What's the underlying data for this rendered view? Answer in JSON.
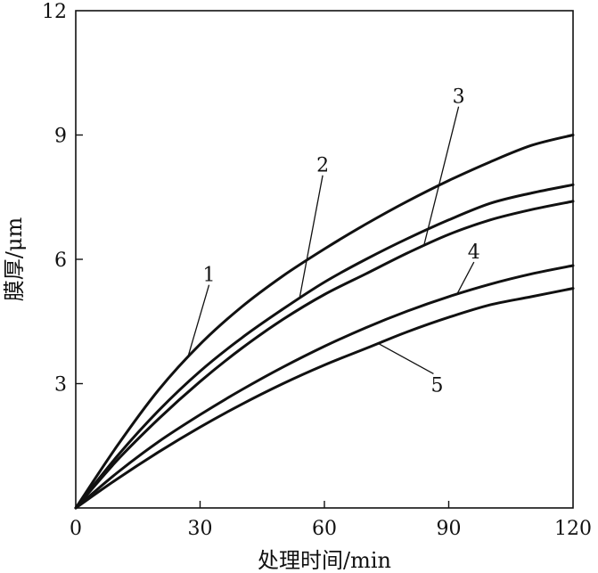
{
  "chart_data": {
    "type": "line",
    "xlabel": "处理时间/min",
    "ylabel": "膜厚/μm",
    "xlim": [
      0,
      120
    ],
    "ylim": [
      0,
      12
    ],
    "x_ticks": [
      0,
      30,
      60,
      90,
      120
    ],
    "y_ticks": [
      3,
      6,
      9,
      12
    ],
    "grid": false,
    "legend": "none",
    "line_color": "#111111",
    "x": [
      0,
      10,
      20,
      30,
      40,
      50,
      60,
      70,
      80,
      90,
      100,
      110,
      120
    ],
    "series": [
      {
        "name": "1",
        "values": [
          0,
          1.5,
          2.85,
          3.95,
          4.85,
          5.6,
          6.25,
          6.85,
          7.4,
          7.9,
          8.35,
          8.75,
          9.0
        ]
      },
      {
        "name": "2",
        "values": [
          0,
          1.25,
          2.35,
          3.3,
          4.1,
          4.8,
          5.45,
          6.0,
          6.5,
          6.95,
          7.35,
          7.6,
          7.8
        ]
      },
      {
        "name": "3",
        "values": [
          0,
          1.15,
          2.15,
          3.05,
          3.85,
          4.55,
          5.15,
          5.65,
          6.15,
          6.6,
          6.95,
          7.2,
          7.4
        ]
      },
      {
        "name": "4",
        "values": [
          0,
          0.85,
          1.6,
          2.25,
          2.85,
          3.4,
          3.9,
          4.35,
          4.75,
          5.1,
          5.4,
          5.65,
          5.85
        ]
      },
      {
        "name": "5",
        "values": [
          0,
          0.7,
          1.35,
          1.95,
          2.5,
          3.0,
          3.45,
          3.85,
          4.25,
          4.6,
          4.9,
          5.1,
          5.3
        ]
      }
    ],
    "annotations": [
      {
        "text": "1",
        "series": "1",
        "at_x": 27
      },
      {
        "text": "2",
        "series": "2",
        "at_x": 54
      },
      {
        "text": "3",
        "series": "3",
        "at_x": 84
      },
      {
        "text": "4",
        "series": "4",
        "at_x": 92
      },
      {
        "text": "5",
        "series": "5",
        "at_x": 73
      }
    ]
  }
}
